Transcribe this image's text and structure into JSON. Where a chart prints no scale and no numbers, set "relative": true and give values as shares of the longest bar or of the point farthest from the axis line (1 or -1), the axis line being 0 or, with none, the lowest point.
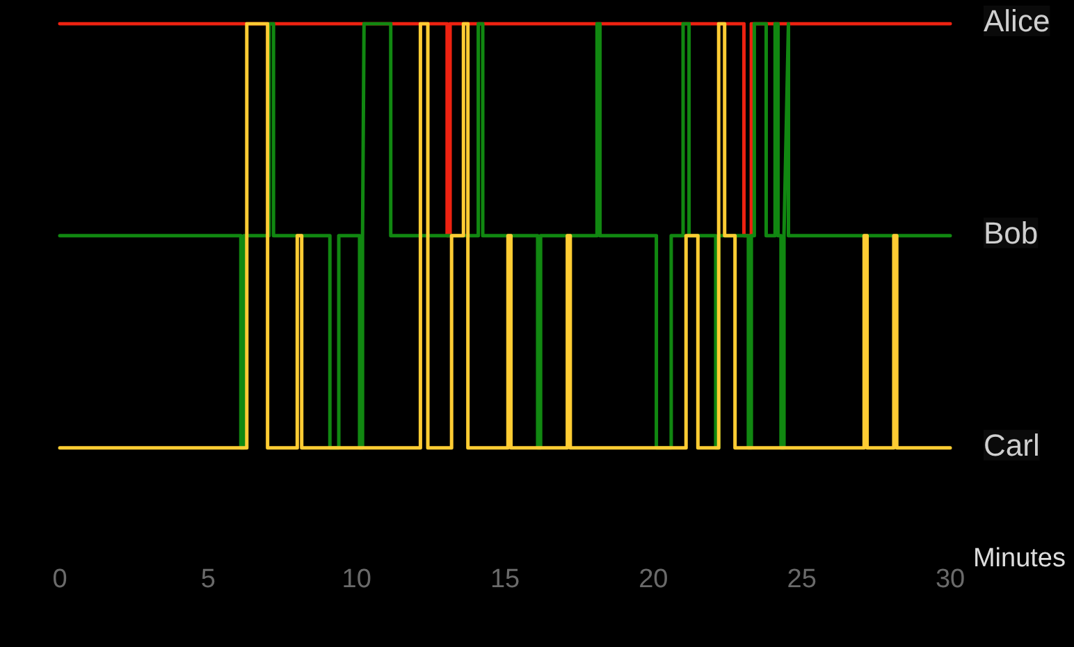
{
  "chart_data": {
    "type": "line",
    "xlabel": "Minutes",
    "relative": true,
    "xlim": [
      0,
      30
    ],
    "xticks": [
      0,
      5,
      10,
      15,
      20,
      25,
      30
    ],
    "annotations": [
      "Alice",
      "Bob",
      "Carl"
    ],
    "grid": false,
    "marker": "none",
    "line_style": "solid",
    "series": [
      {
        "color": "#ee2211",
        "x": [
          0,
          13.05,
          13.05,
          13.15,
          13.15,
          23.05,
          23.05,
          23.3,
          23.3,
          30
        ],
        "values": [
          1,
          1,
          0.5,
          0.5,
          1,
          1,
          0.5,
          0.5,
          1,
          1
        ]
      },
      {
        "color": "#118811",
        "x": [
          0,
          6.1,
          6.1,
          6.2,
          6.2,
          7.05,
          7.05,
          7.2,
          7.2,
          9.1,
          9.1,
          9.4,
          9.4,
          10.1,
          10.1,
          10.2,
          10.2,
          10.25,
          10.25,
          11.05,
          11.05,
          11.15,
          11.15,
          14.1,
          14.1,
          14.25,
          14.25,
          16.1,
          16.1,
          16.2,
          16.2,
          18.1,
          18.1,
          18.2,
          18.2,
          20.1,
          20.1,
          20.6,
          20.6,
          21.0,
          21.0,
          21.2,
          21.2,
          22.1,
          22.1,
          22.2,
          22.2,
          23.2,
          23.2,
          23.3,
          23.3,
          23.4,
          23.4,
          23.8,
          23.8,
          24.1,
          24.1,
          24.2,
          24.2,
          24.3,
          24.3,
          24.4,
          24.4,
          24.55,
          24.55,
          30
        ],
        "values": [
          0.5,
          0.5,
          0,
          0,
          0.5,
          0.5,
          1,
          1,
          0.5,
          0.5,
          0,
          0,
          0.5,
          0.5,
          0,
          0,
          0.5,
          1,
          1,
          1,
          1,
          1,
          0.5,
          0.5,
          1,
          1,
          0.5,
          0.5,
          0,
          0,
          0.5,
          0.5,
          1,
          1,
          0.5,
          0.5,
          0,
          0,
          0.5,
          0.5,
          1,
          1,
          0.5,
          0.5,
          0,
          0,
          0.5,
          0.5,
          0,
          0,
          0.5,
          0.5,
          1,
          1,
          0.5,
          0.5,
          1,
          1,
          0.5,
          0.5,
          0,
          0,
          0.5,
          1,
          0.5,
          0.5
        ]
      },
      {
        "color": "#ffcc33",
        "x": [
          0,
          6.3,
          6.3,
          7.0,
          7.0,
          8.0,
          8.0,
          8.15,
          8.15,
          12.15,
          12.15,
          12.4,
          12.4,
          13.2,
          13.2,
          13.6,
          13.6,
          13.75,
          13.75,
          15.1,
          15.1,
          15.2,
          15.2,
          17.1,
          17.1,
          17.2,
          17.2,
          21.1,
          21.1,
          21.5,
          21.5,
          22.2,
          22.2,
          22.4,
          22.4,
          22.5,
          22.5,
          22.75,
          22.75,
          27.1,
          27.1,
          27.2,
          27.2,
          28.1,
          28.1,
          28.2,
          28.2,
          30
        ],
        "values": [
          0,
          0,
          1,
          1,
          0,
          0,
          0.5,
          0.5,
          0,
          0,
          1,
          1,
          0,
          0,
          0.5,
          0.5,
          1,
          1,
          0,
          0,
          0.5,
          0.5,
          0,
          0,
          0.5,
          0.5,
          0,
          0,
          0.5,
          0.5,
          0,
          0,
          1,
          1,
          0.5,
          0.5,
          0.5,
          0.5,
          0,
          0,
          0.5,
          0.5,
          0,
          0,
          0.5,
          0.5,
          0,
          0
        ]
      }
    ]
  }
}
